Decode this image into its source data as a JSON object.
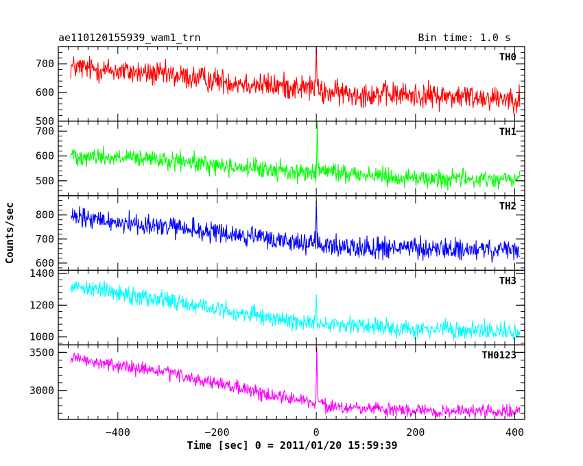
{
  "chart_data": {
    "type": "line",
    "title": "ae110120155939_wam1_trn",
    "subtitle": "Bin time: 1.0 s",
    "xlabel": "Time [sec] 0 = 2011/01/20 15:59:39",
    "ylabel": "Counts/sec",
    "xlim": [
      -520,
      420
    ],
    "x_ticks": [
      -400,
      -200,
      0,
      200,
      400
    ],
    "x_tick_labels": [
      "−400",
      "−200",
      "0",
      "200",
      "400"
    ],
    "grid": false,
    "panels": [
      {
        "name": "TH0",
        "color": "#ff0000",
        "ylim": [
          500,
          760
        ],
        "y_ticks": [
          500,
          600,
          700
        ],
        "y_tick_labels": [
          "500",
          "600",
          "700"
        ],
        "trend": [
          [
            -500,
            690
          ],
          [
            -300,
            660
          ],
          [
            -100,
            625
          ],
          [
            0,
            615
          ],
          [
            5,
            600
          ],
          [
            200,
            590
          ],
          [
            410,
            580
          ]
        ],
        "noise": 35,
        "peak": {
          "x": 0,
          "value": 760
        }
      },
      {
        "name": "TH1",
        "color": "#00ff00",
        "ylim": [
          440,
          740
        ],
        "y_ticks": [
          500,
          600,
          700
        ],
        "y_tick_labels": [
          "500",
          "600",
          "700"
        ],
        "trend": [
          [
            -500,
            605
          ],
          [
            -300,
            580
          ],
          [
            -100,
            545
          ],
          [
            0,
            530
          ],
          [
            5,
            540
          ],
          [
            200,
            510
          ],
          [
            410,
            505
          ]
        ],
        "noise": 30,
        "peak": {
          "x": 2,
          "value": 740
        }
      },
      {
        "name": "TH2",
        "color": "#0000ff",
        "ylim": [
          570,
          880
        ],
        "y_ticks": [
          600,
          700,
          800
        ],
        "y_tick_labels": [
          "600",
          "700",
          "800"
        ],
        "trend": [
          [
            -500,
            790
          ],
          [
            -300,
            750
          ],
          [
            -100,
            700
          ],
          [
            0,
            680
          ],
          [
            5,
            670
          ],
          [
            200,
            660
          ],
          [
            410,
            650
          ]
        ],
        "noise": 35,
        "peak": {
          "x": 0,
          "value": 860
        }
      },
      {
        "name": "TH3",
        "color": "#00ffff",
        "ylim": [
          950,
          1420
        ],
        "y_ticks": [
          1000,
          1200,
          1400
        ],
        "y_tick_labels": [
          "1000",
          "1200",
          "1400"
        ],
        "trend": [
          [
            -500,
            1330
          ],
          [
            -300,
            1230
          ],
          [
            -100,
            1120
          ],
          [
            0,
            1085
          ],
          [
            5,
            1090
          ],
          [
            200,
            1050
          ],
          [
            410,
            1030
          ]
        ],
        "noise": 45,
        "peak": {
          "x": 0,
          "value": 1270
        }
      },
      {
        "name": "TH0123",
        "color": "#ff00ff",
        "ylim": [
          2620,
          3600
        ],
        "y_ticks": [
          3000,
          3500
        ],
        "y_tick_labels": [
          "3000",
          "3500"
        ],
        "trend": [
          [
            -500,
            3420
          ],
          [
            -300,
            3230
          ],
          [
            -100,
            2950
          ],
          [
            -5,
            2850
          ],
          [
            0,
            2890
          ],
          [
            20,
            2780
          ],
          [
            200,
            2730
          ],
          [
            410,
            2720
          ]
        ],
        "noise": 70,
        "peak": {
          "x": 1,
          "value": 3570
        }
      }
    ]
  }
}
